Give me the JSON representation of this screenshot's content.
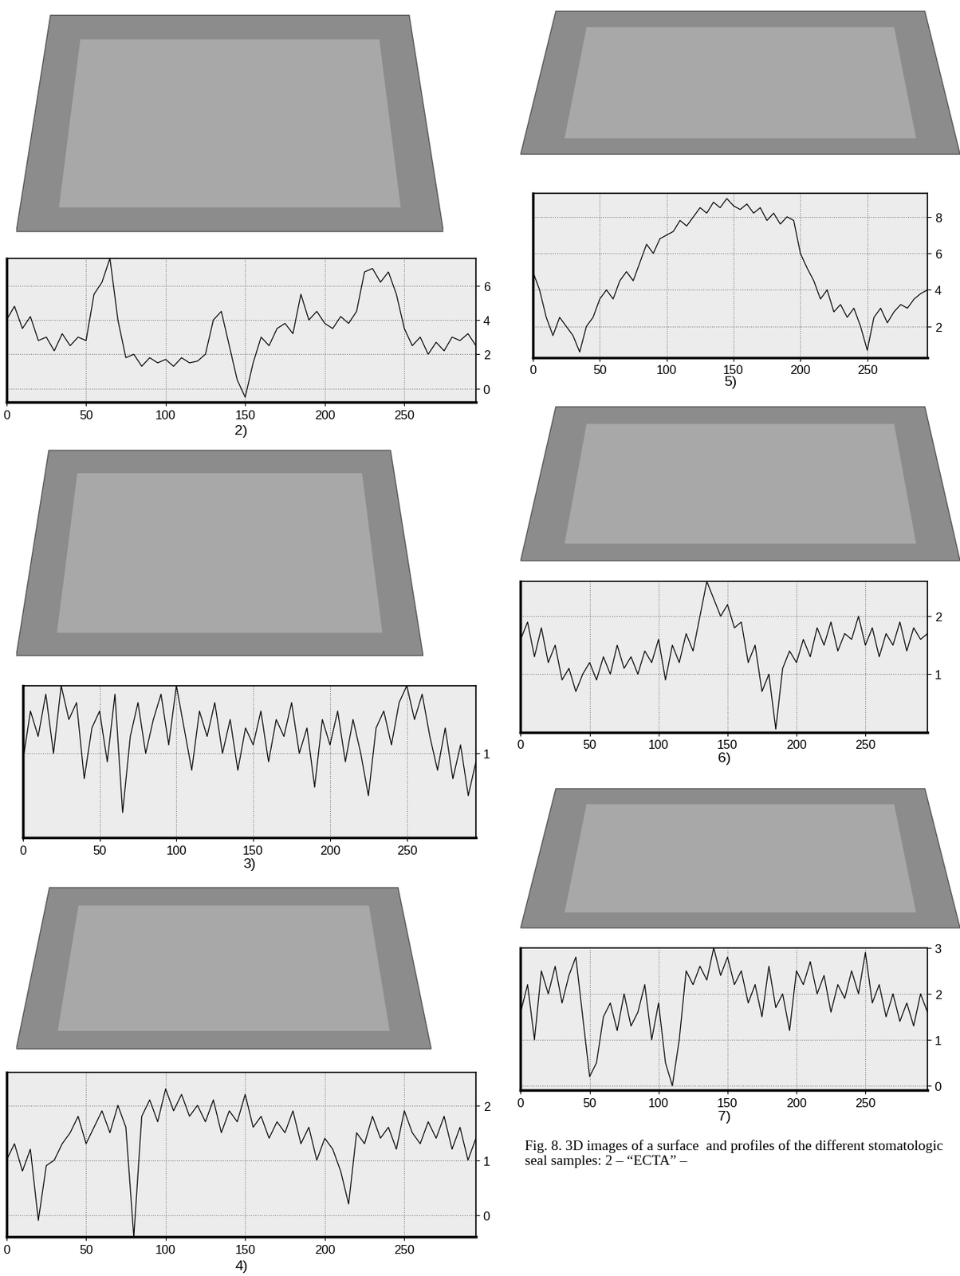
{
  "chart_data": [
    {
      "type": "line",
      "label": "2)",
      "color": "#000000",
      "grid": true,
      "x": [
        0,
        5,
        10,
        15,
        20,
        25,
        30,
        35,
        40,
        45,
        50,
        55,
        60,
        65,
        70,
        75,
        80,
        85,
        90,
        95,
        100,
        105,
        110,
        115,
        120,
        125,
        130,
        135,
        140,
        145,
        150,
        155,
        160,
        165,
        170,
        175,
        180,
        185,
        190,
        195,
        200,
        205,
        210,
        215,
        220,
        225,
        230,
        235,
        240,
        245,
        250,
        255,
        260,
        265,
        270,
        275,
        280,
        285,
        290,
        295
      ],
      "values": [
        4.0,
        4.8,
        3.5,
        4.2,
        2.8,
        3.0,
        2.2,
        3.2,
        2.5,
        3.0,
        2.8,
        5.5,
        6.2,
        7.6,
        4.0,
        1.8,
        2.0,
        1.3,
        1.8,
        1.5,
        1.7,
        1.3,
        1.8,
        1.5,
        1.6,
        2.0,
        4.0,
        4.5,
        2.5,
        0.5,
        -0.5,
        1.5,
        3.0,
        2.5,
        3.5,
        3.8,
        3.2,
        5.5,
        4.0,
        4.5,
        3.8,
        3.5,
        4.2,
        3.8,
        4.5,
        6.8,
        7.0,
        6.2,
        6.8,
        5.5,
        3.5,
        2.5,
        3.0,
        2.0,
        2.7,
        2.2,
        3.0,
        2.8,
        3.2,
        2.5
      ],
      "xlim": [
        0,
        295
      ],
      "xticks": [
        0,
        50,
        100,
        150,
        200,
        250
      ],
      "ylim": [
        -0.8,
        7.6
      ],
      "yticks": [
        0,
        2,
        4,
        6
      ]
    },
    {
      "type": "line",
      "label": "3)",
      "color": "#000000",
      "grid": true,
      "x": [
        0,
        5,
        10,
        15,
        20,
        25,
        30,
        35,
        40,
        45,
        50,
        55,
        60,
        65,
        70,
        75,
        80,
        85,
        90,
        95,
        100,
        105,
        110,
        115,
        120,
        125,
        130,
        135,
        140,
        145,
        150,
        155,
        160,
        165,
        170,
        175,
        180,
        185,
        190,
        195,
        200,
        205,
        210,
        215,
        220,
        225,
        230,
        235,
        240,
        245,
        250,
        255,
        260,
        265,
        270,
        275,
        280,
        285,
        290,
        295
      ],
      "values": [
        0.9,
        1.5,
        1.2,
        1.7,
        1.0,
        1.8,
        1.4,
        1.6,
        0.7,
        1.3,
        1.5,
        0.9,
        1.7,
        0.3,
        1.2,
        1.6,
        1.0,
        1.4,
        1.7,
        1.1,
        1.8,
        1.3,
        0.8,
        1.5,
        1.2,
        1.6,
        1.0,
        1.4,
        0.8,
        1.3,
        1.1,
        1.5,
        0.9,
        1.4,
        1.2,
        1.6,
        1.0,
        1.3,
        0.6,
        1.4,
        1.1,
        1.5,
        0.9,
        1.4,
        1.0,
        0.5,
        1.3,
        1.5,
        1.1,
        1.6,
        1.8,
        1.4,
        1.7,
        1.2,
        0.8,
        1.3,
        0.7,
        1.1,
        0.5,
        0.9
      ],
      "xlim": [
        0,
        295
      ],
      "xticks": [
        0,
        50,
        100,
        150,
        200,
        250
      ],
      "ylim": [
        0,
        1.8
      ],
      "yticks": [
        1
      ]
    },
    {
      "type": "line",
      "label": "4)",
      "color": "#000000",
      "grid": true,
      "x": [
        0,
        5,
        10,
        15,
        20,
        25,
        30,
        35,
        40,
        45,
        50,
        55,
        60,
        65,
        70,
        75,
        80,
        85,
        90,
        95,
        100,
        105,
        110,
        115,
        120,
        125,
        130,
        135,
        140,
        145,
        150,
        155,
        160,
        165,
        170,
        175,
        180,
        185,
        190,
        195,
        200,
        205,
        210,
        215,
        220,
        225,
        230,
        235,
        240,
        245,
        250,
        255,
        260,
        265,
        270,
        275,
        280,
        285,
        290,
        295
      ],
      "values": [
        1.0,
        1.3,
        0.8,
        1.2,
        -0.1,
        0.9,
        1.0,
        1.3,
        1.5,
        1.8,
        1.3,
        1.6,
        1.9,
        1.5,
        2.0,
        1.6,
        -0.4,
        1.8,
        2.1,
        1.7,
        2.3,
        1.9,
        2.2,
        1.8,
        2.0,
        1.7,
        2.1,
        1.5,
        1.9,
        1.7,
        2.2,
        1.6,
        1.8,
        1.4,
        1.7,
        1.5,
        1.9,
        1.3,
        1.6,
        1.0,
        1.4,
        1.2,
        0.8,
        0.2,
        1.5,
        1.3,
        1.8,
        1.4,
        1.6,
        1.2,
        1.9,
        1.5,
        1.3,
        1.7,
        1.4,
        1.8,
        1.2,
        1.6,
        1.0,
        1.4
      ],
      "xlim": [
        0,
        295
      ],
      "xticks": [
        0,
        50,
        100,
        150,
        200,
        250
      ],
      "ylim": [
        -0.4,
        2.6
      ],
      "yticks": [
        0,
        1,
        2
      ]
    },
    {
      "type": "line",
      "label": "5)",
      "color": "#000000",
      "grid": true,
      "x": [
        0,
        5,
        10,
        15,
        20,
        25,
        30,
        35,
        40,
        45,
        50,
        55,
        60,
        65,
        70,
        75,
        80,
        85,
        90,
        95,
        100,
        105,
        110,
        115,
        120,
        125,
        130,
        135,
        140,
        145,
        150,
        155,
        160,
        165,
        170,
        175,
        180,
        185,
        190,
        195,
        200,
        205,
        210,
        215,
        220,
        225,
        230,
        235,
        240,
        245,
        250,
        255,
        260,
        265,
        270,
        275,
        280,
        285,
        290,
        295
      ],
      "values": [
        5.0,
        4.0,
        2.5,
        1.5,
        2.5,
        2.0,
        1.5,
        0.6,
        2.0,
        2.5,
        3.5,
        4.0,
        3.5,
        4.5,
        5.0,
        4.5,
        5.5,
        6.5,
        6.0,
        6.8,
        7.0,
        7.2,
        7.8,
        7.5,
        8.0,
        8.5,
        8.2,
        8.8,
        8.5,
        9.0,
        8.6,
        8.4,
        8.7,
        8.2,
        8.5,
        7.8,
        8.2,
        7.6,
        8.0,
        7.8,
        6.0,
        5.2,
        4.5,
        3.5,
        4.0,
        2.8,
        3.2,
        2.5,
        3.0,
        2.0,
        0.7,
        2.5,
        3.0,
        2.2,
        2.8,
        3.2,
        3.0,
        3.5,
        3.8,
        4.0
      ],
      "xlim": [
        0,
        295
      ],
      "xticks": [
        0,
        50,
        100,
        150,
        200,
        250
      ],
      "ylim": [
        0.3,
        9.3
      ],
      "yticks": [
        2,
        4,
        6,
        8
      ]
    },
    {
      "type": "line",
      "label": "6)",
      "color": "#000000",
      "grid": true,
      "x": [
        0,
        5,
        10,
        15,
        20,
        25,
        30,
        35,
        40,
        45,
        50,
        55,
        60,
        65,
        70,
        75,
        80,
        85,
        90,
        95,
        100,
        105,
        110,
        115,
        120,
        125,
        130,
        135,
        140,
        145,
        150,
        155,
        160,
        165,
        170,
        175,
        180,
        185,
        190,
        195,
        200,
        205,
        210,
        215,
        220,
        225,
        230,
        235,
        240,
        245,
        250,
        255,
        260,
        265,
        270,
        275,
        280,
        285,
        290,
        295
      ],
      "values": [
        1.6,
        1.9,
        1.3,
        1.8,
        1.2,
        1.5,
        0.9,
        1.1,
        0.7,
        1.0,
        1.2,
        0.9,
        1.3,
        1.0,
        1.5,
        1.1,
        1.3,
        1.0,
        1.4,
        1.2,
        1.6,
        0.9,
        1.5,
        1.2,
        1.7,
        1.4,
        2.0,
        2.6,
        2.3,
        2.0,
        2.2,
        1.8,
        1.9,
        1.2,
        1.5,
        0.7,
        1.0,
        0.05,
        1.1,
        1.4,
        1.2,
        1.6,
        1.3,
        1.8,
        1.5,
        1.9,
        1.4,
        1.7,
        1.6,
        2.0,
        1.5,
        1.8,
        1.3,
        1.7,
        1.5,
        1.9,
        1.4,
        1.8,
        1.6,
        1.7
      ],
      "xlim": [
        0,
        295
      ],
      "xticks": [
        0,
        50,
        100,
        150,
        200,
        250
      ],
      "ylim": [
        0,
        2.6
      ],
      "yticks": [
        1,
        2
      ]
    },
    {
      "type": "line",
      "label": "7)",
      "color": "#000000",
      "grid": true,
      "x": [
        0,
        5,
        10,
        15,
        20,
        25,
        30,
        35,
        40,
        45,
        50,
        55,
        60,
        65,
        70,
        75,
        80,
        85,
        90,
        95,
        100,
        105,
        110,
        115,
        120,
        125,
        130,
        135,
        140,
        145,
        150,
        155,
        160,
        165,
        170,
        175,
        180,
        185,
        190,
        195,
        200,
        205,
        210,
        215,
        220,
        225,
        230,
        235,
        240,
        245,
        250,
        255,
        260,
        265,
        270,
        275,
        280,
        285,
        290,
        295
      ],
      "values": [
        1.6,
        2.2,
        1.0,
        2.5,
        2.0,
        2.6,
        1.8,
        2.4,
        2.8,
        1.5,
        0.2,
        0.5,
        1.5,
        1.8,
        1.2,
        2.0,
        1.3,
        1.6,
        2.2,
        1.0,
        1.8,
        0.5,
        0.0,
        1.0,
        2.5,
        2.2,
        2.6,
        2.3,
        3.0,
        2.4,
        2.8,
        2.2,
        2.5,
        1.8,
        2.2,
        1.5,
        2.6,
        1.7,
        2.0,
        1.2,
        2.5,
        2.2,
        2.7,
        2.0,
        2.4,
        1.6,
        2.2,
        1.9,
        2.5,
        2.0,
        2.9,
        1.8,
        2.2,
        1.5,
        2.0,
        1.4,
        1.8,
        1.3,
        2.0,
        1.6
      ],
      "xlim": [
        0,
        295
      ],
      "xticks": [
        0,
        50,
        100,
        150,
        200,
        250
      ],
      "ylim": [
        -0.1,
        3
      ],
      "yticks": [
        0,
        1,
        2,
        3
      ]
    }
  ],
  "caption": "Fig. 8. 3D images of a surface  and profiles of the different stomatologic seal samples: 2 – “ECTA” –"
}
